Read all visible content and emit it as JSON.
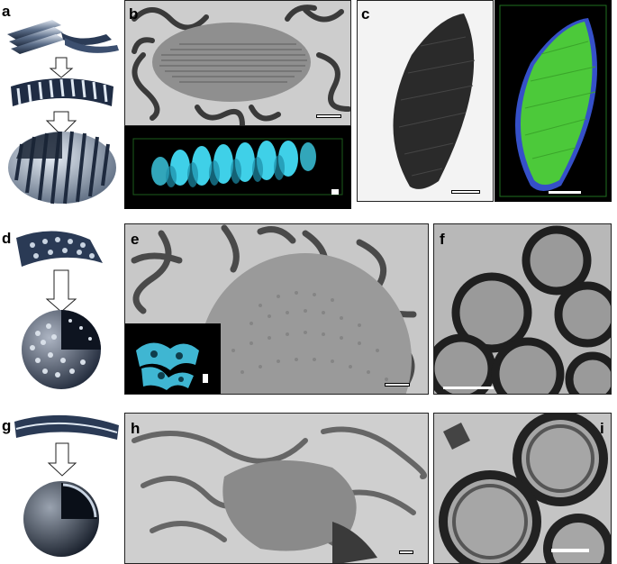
{
  "figure": {
    "panel_labels": [
      "a",
      "b",
      "c",
      "d",
      "e",
      "f",
      "g",
      "h",
      "i"
    ],
    "colors": {
      "tem_background": "#cfcfcf",
      "tem_dark": "#2b2b2b",
      "tomogram_cyan": "#3fd0e8",
      "tomogram_green": "#4cc93a",
      "tomogram_blue": "#3550c8",
      "scheme_navy": "#2a3a55",
      "scheme_light": "#c9d4e2"
    }
  }
}
